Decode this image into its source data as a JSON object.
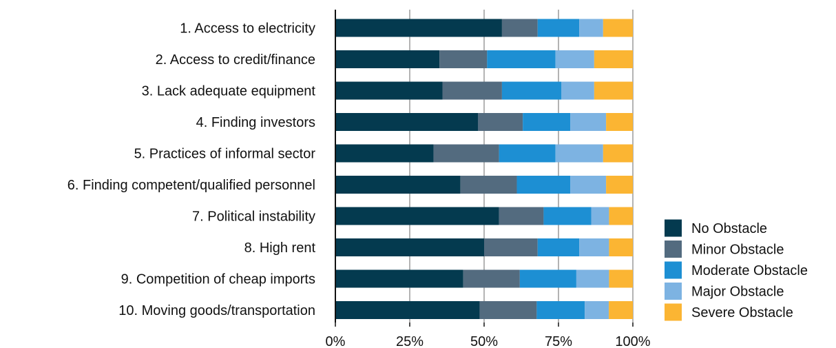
{
  "chart_data": {
    "type": "bar",
    "orientation": "horizontal",
    "stacked": "percent",
    "categories": [
      "1. Access to electricity",
      "2. Access to credit/finance",
      "3. Lack adequate equipment",
      "4. Finding investors",
      "5. Practices of informal sector",
      "6. Finding competent/qualified personnel",
      "7. Political instability",
      "8. High rent",
      "9. Competition of cheap imports",
      "10. Moving goods/transportation"
    ],
    "series": [
      {
        "name": "No Obstacle",
        "color": "#043a4f",
        "values": [
          56,
          35,
          36,
          48,
          33,
          42,
          55,
          50,
          43,
          48
        ]
      },
      {
        "name": "Minor Obstacle",
        "color": "#536b7f",
        "values": [
          12,
          16,
          20,
          15,
          22,
          19,
          15,
          18,
          19,
          19
        ]
      },
      {
        "name": "Moderate Obstacle",
        "color": "#1d8fd3",
        "values": [
          14,
          23,
          20,
          16,
          19,
          18,
          16,
          14,
          19,
          16
        ]
      },
      {
        "name": "Major Obstacle",
        "color": "#7db3e2",
        "values": [
          8,
          13,
          11,
          12,
          16,
          12,
          6,
          10,
          11,
          8
        ]
      },
      {
        "name": "Severe Obstacle",
        "color": "#fbb533",
        "values": [
          10,
          13,
          13,
          9,
          10,
          9,
          8,
          8,
          8,
          8
        ]
      }
    ],
    "x_ticks": [
      "0%",
      "25%",
      "50%",
      "75%",
      "100%"
    ],
    "xlim": [
      0,
      100
    ],
    "grid": "vertical",
    "legend_position": "right"
  }
}
